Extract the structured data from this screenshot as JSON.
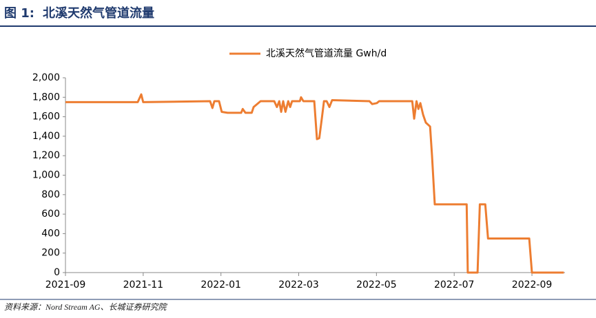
{
  "chart_data": {
    "type": "line",
    "figure_label": "图 1:",
    "title": "北溪天然气管道流量",
    "source": "资料来源：Nord Stream AG、长城证券研究院",
    "x": [
      0,
      1.86,
      1.95,
      2.0,
      3.72,
      3.78,
      3.83,
      3.95,
      4.02,
      4.17,
      4.52,
      4.56,
      4.63,
      4.79,
      4.84,
      5.02,
      5.37,
      5.44,
      5.5,
      5.55,
      5.6,
      5.66,
      5.73,
      5.78,
      5.83,
      6.03,
      6.06,
      6.12,
      6.4,
      6.47,
      6.53,
      6.6,
      6.65,
      6.72,
      6.79,
      6.86,
      7.82,
      7.89,
      8.01,
      8.07,
      8.92,
      8.97,
      9.03,
      9.08,
      9.13,
      9.2,
      9.27,
      9.38,
      9.43,
      9.5,
      10.32,
      10.35,
      10.6,
      10.66,
      10.8,
      10.87,
      11.93,
      12.0,
      12.82
    ],
    "series": [
      {
        "name": "北溪天然气管道流量 Gwh/d",
        "color": "#ed7d31",
        "values": [
          1750,
          1750,
          1830,
          1750,
          1760,
          1690,
          1760,
          1760,
          1650,
          1640,
          1640,
          1680,
          1640,
          1640,
          1700,
          1760,
          1760,
          1700,
          1760,
          1650,
          1760,
          1650,
          1760,
          1700,
          1760,
          1760,
          1800,
          1760,
          1760,
          1370,
          1380,
          1600,
          1760,
          1760,
          1700,
          1770,
          1760,
          1730,
          1740,
          1760,
          1760,
          1580,
          1760,
          1680,
          1740,
          1620,
          1540,
          1500,
          1200,
          700,
          700,
          0,
          0,
          700,
          700,
          350,
          350,
          0,
          0
        ]
      }
    ],
    "xlim": [
      0,
      12.85
    ],
    "xticks": [
      {
        "value": 0,
        "label": "2021-09"
      },
      {
        "value": 2,
        "label": "2021-11"
      },
      {
        "value": 4,
        "label": "2022-01"
      },
      {
        "value": 6,
        "label": "2022-03"
      },
      {
        "value": 8,
        "label": "2022-05"
      },
      {
        "value": 10,
        "label": "2022-07"
      },
      {
        "value": 12,
        "label": "2022-09"
      }
    ],
    "ylim": [
      0,
      2000
    ],
    "yticks": [
      0,
      200,
      400,
      600,
      800,
      {
        "value": 1000,
        "label": "1,000"
      },
      {
        "value": 1200,
        "label": "1,200"
      },
      {
        "value": 1400,
        "label": "1,400"
      },
      {
        "value": 1600,
        "label": "1,600"
      },
      {
        "value": 1800,
        "label": "1,800"
      },
      {
        "value": 2000,
        "label": "2,000"
      }
    ],
    "grid": false,
    "legend": "top"
  }
}
